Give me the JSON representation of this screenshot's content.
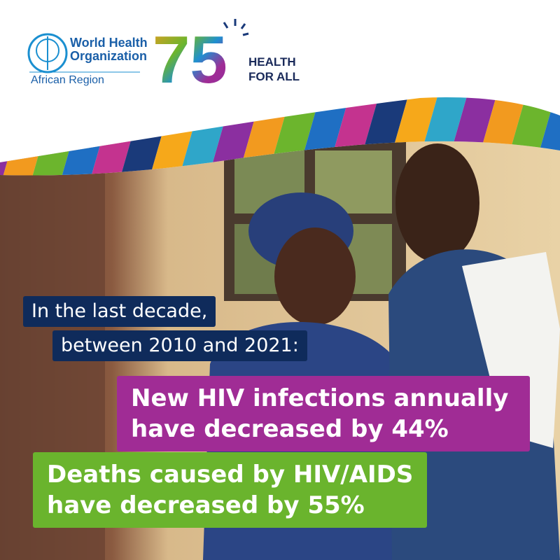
{
  "header": {
    "org_line1": "World Health",
    "org_line2": "Organization",
    "region": "African Region",
    "anniversary": "75",
    "slogan_line1": "HEALTH",
    "slogan_line2": "FOR ALL"
  },
  "intro": {
    "line1": "In the last decade,",
    "line2": "between 2010 and 2021:"
  },
  "facts": [
    {
      "line1": "New HIV infections annually",
      "line2": "have decreased by 44%"
    },
    {
      "line1": "Deaths caused by HIV/AIDS",
      "line2": "have decreased by 55%"
    }
  ]
}
